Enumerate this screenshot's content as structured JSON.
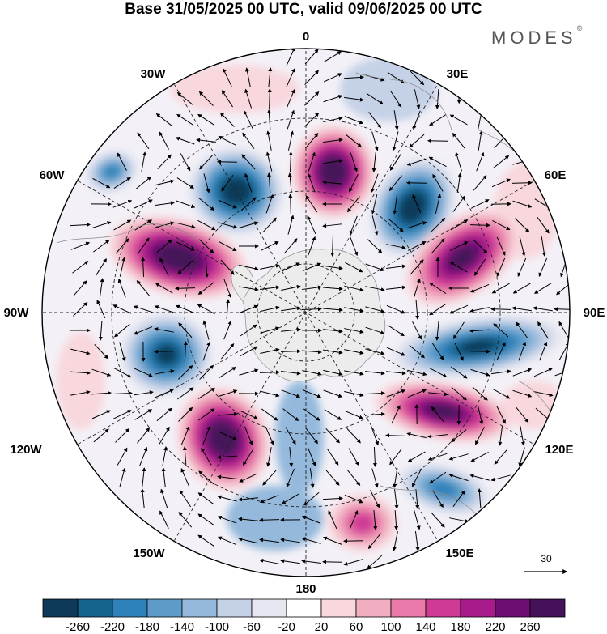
{
  "title": "Base 31/05/2025 00 UTC, valid 09/06/2025 00 UTC",
  "brand": "MODES",
  "brand_mark": "©",
  "longitude_labels": {
    "lon_0": "0",
    "lon_30e": "30E",
    "lon_60e": "60E",
    "lon_90e": "90E",
    "lon_120e": "120E",
    "lon_150e": "150E",
    "lon_180": "180",
    "lon_150w": "150W",
    "lon_120w": "120W",
    "lon_90w": "90W",
    "lon_60w": "60W",
    "lon_30w": "30W"
  },
  "reference_vector": {
    "label": "30"
  },
  "colorbar": {
    "labels": [
      "-260",
      "-220",
      "-180",
      "-140",
      "-100",
      "-60",
      "-20",
      "20",
      "60",
      "100",
      "140",
      "180",
      "220",
      "260"
    ],
    "colors": [
      "#0d3a58",
      "#14628e",
      "#2e82ba",
      "#5d9cc9",
      "#94b9dc",
      "#c5d1e7",
      "#e6e7f1",
      "#ffffff",
      "#f8d7dd",
      "#f1aec0",
      "#e879a8",
      "#cf3a95",
      "#a71c8a",
      "#6b1072",
      "#451259"
    ]
  },
  "anomaly_centers": [
    {
      "name": "neg-60w",
      "value": -140
    },
    {
      "name": "neg-30w",
      "value": -260
    },
    {
      "name": "pos-0",
      "value": 260
    },
    {
      "name": "neg-40e",
      "value": -260
    },
    {
      "name": "pos-60e",
      "value": 220
    },
    {
      "name": "pos-70w",
      "value": 260
    },
    {
      "name": "neg-90e",
      "value": -220
    },
    {
      "name": "neg-105w",
      "value": -220
    },
    {
      "name": "pos-140w",
      "value": 260
    },
    {
      "name": "pos-115e",
      "value": 220
    },
    {
      "name": "neg-140e",
      "value": -140
    },
    {
      "name": "pos-160e",
      "value": 100
    }
  ]
}
